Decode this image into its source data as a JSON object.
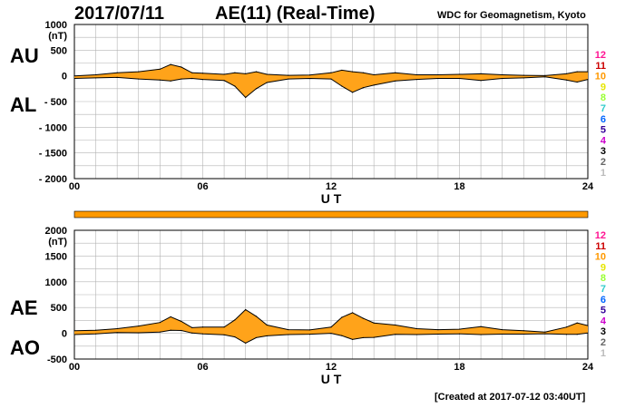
{
  "header": {
    "date": "2017/07/11",
    "title": "AE(11) (Real-Time)",
    "source": "WDC for Geomagnetism, Kyoto"
  },
  "footer": {
    "created": "[Created at 2017-07-12 03:40UT]"
  },
  "legend": {
    "labels": [
      "12",
      "11",
      "10",
      "9",
      "8",
      "7",
      "6",
      "5",
      "4",
      "3",
      "2",
      "1"
    ],
    "colors": [
      "#ff1493",
      "#cc0000",
      "#ff9900",
      "#e6e600",
      "#99ff33",
      "#33cccc",
      "#0066ff",
      "#330099",
      "#cc00cc",
      "#000000",
      "#666666",
      "#bbbbbb"
    ]
  },
  "colors": {
    "fill": "#ffa31a",
    "line": "#000000",
    "grid": "#b3b3b3",
    "bar": "#ff9900"
  },
  "chart_data": [
    {
      "type": "area",
      "panel": "AU/AL",
      "side_labels": {
        "upper": "AU",
        "lower": "AL"
      },
      "unit": "(nT)",
      "xlabel": "U T",
      "xlim": [
        0,
        24
      ],
      "xticks": [
        "00",
        "06",
        "12",
        "18",
        "24"
      ],
      "ylim": [
        -2000,
        1000
      ],
      "yticks": [
        "1000",
        "500",
        "0",
        "- 500",
        "- 1000",
        "- 1500",
        "- 2000"
      ],
      "series": [
        {
          "name": "AU",
          "x": [
            0,
            1,
            2,
            3,
            4,
            4.5,
            5,
            5.5,
            6,
            7,
            7.5,
            8,
            8.5,
            9,
            10,
            11,
            12,
            12.5,
            13,
            13.5,
            14,
            15,
            16,
            17,
            18,
            19,
            20,
            21,
            22,
            23,
            23.5,
            24
          ],
          "values": [
            0,
            20,
            60,
            80,
            130,
            220,
            170,
            60,
            50,
            30,
            60,
            40,
            80,
            30,
            10,
            15,
            60,
            110,
            80,
            60,
            20,
            60,
            20,
            20,
            30,
            40,
            20,
            10,
            5,
            40,
            80,
            80
          ]
        },
        {
          "name": "AL",
          "x": [
            0,
            1,
            2,
            3,
            4,
            4.5,
            5,
            5.5,
            6,
            7,
            7.5,
            8,
            8.5,
            9,
            10,
            11,
            12,
            12.5,
            13,
            13.5,
            14,
            15,
            16,
            17,
            18,
            19,
            20,
            21,
            22,
            23,
            23.5,
            24
          ],
          "values": [
            -50,
            -40,
            -30,
            -60,
            -80,
            -100,
            -60,
            -50,
            -70,
            -90,
            -200,
            -420,
            -250,
            -130,
            -60,
            -50,
            -60,
            -200,
            -320,
            -230,
            -180,
            -100,
            -70,
            -50,
            -50,
            -90,
            -50,
            -40,
            -20,
            -80,
            -120,
            -70
          ]
        }
      ]
    },
    {
      "type": "area",
      "panel": "AE/AO",
      "side_labels": {
        "upper": "AE",
        "lower": "AO"
      },
      "unit": "(nT)",
      "xlabel": "U T",
      "xlim": [
        0,
        24
      ],
      "xticks": [
        "00",
        "06",
        "12",
        "18",
        "24"
      ],
      "ylim": [
        -500,
        2000
      ],
      "yticks": [
        "2000",
        "1500",
        "1000",
        "500",
        "0",
        "-500"
      ],
      "series": [
        {
          "name": "AE",
          "x": [
            0,
            1,
            2,
            3,
            4,
            4.5,
            5,
            5.5,
            6,
            7,
            7.5,
            8,
            8.5,
            9,
            10,
            11,
            12,
            12.5,
            13,
            13.5,
            14,
            15,
            16,
            17,
            18,
            19,
            20,
            21,
            22,
            23,
            23.5,
            24
          ],
          "values": [
            50,
            60,
            90,
            140,
            210,
            320,
            230,
            110,
            120,
            120,
            260,
            460,
            330,
            160,
            70,
            65,
            120,
            310,
            400,
            290,
            200,
            160,
            90,
            70,
            80,
            130,
            70,
            50,
            25,
            120,
            200,
            150
          ]
        },
        {
          "name": "AO",
          "x": [
            0,
            1,
            2,
            3,
            4,
            4.5,
            5,
            5.5,
            6,
            7,
            7.5,
            8,
            8.5,
            9,
            10,
            11,
            12,
            12.5,
            13,
            13.5,
            14,
            15,
            16,
            17,
            18,
            19,
            20,
            21,
            22,
            23,
            23.5,
            24
          ],
          "values": [
            -25,
            -10,
            15,
            10,
            25,
            60,
            55,
            5,
            -10,
            -30,
            -70,
            -190,
            -85,
            -50,
            -25,
            -18,
            0,
            -45,
            -120,
            -85,
            -80,
            -20,
            -25,
            -15,
            -10,
            -25,
            -15,
            -15,
            -8,
            -20,
            -20,
            5
          ]
        }
      ]
    }
  ]
}
